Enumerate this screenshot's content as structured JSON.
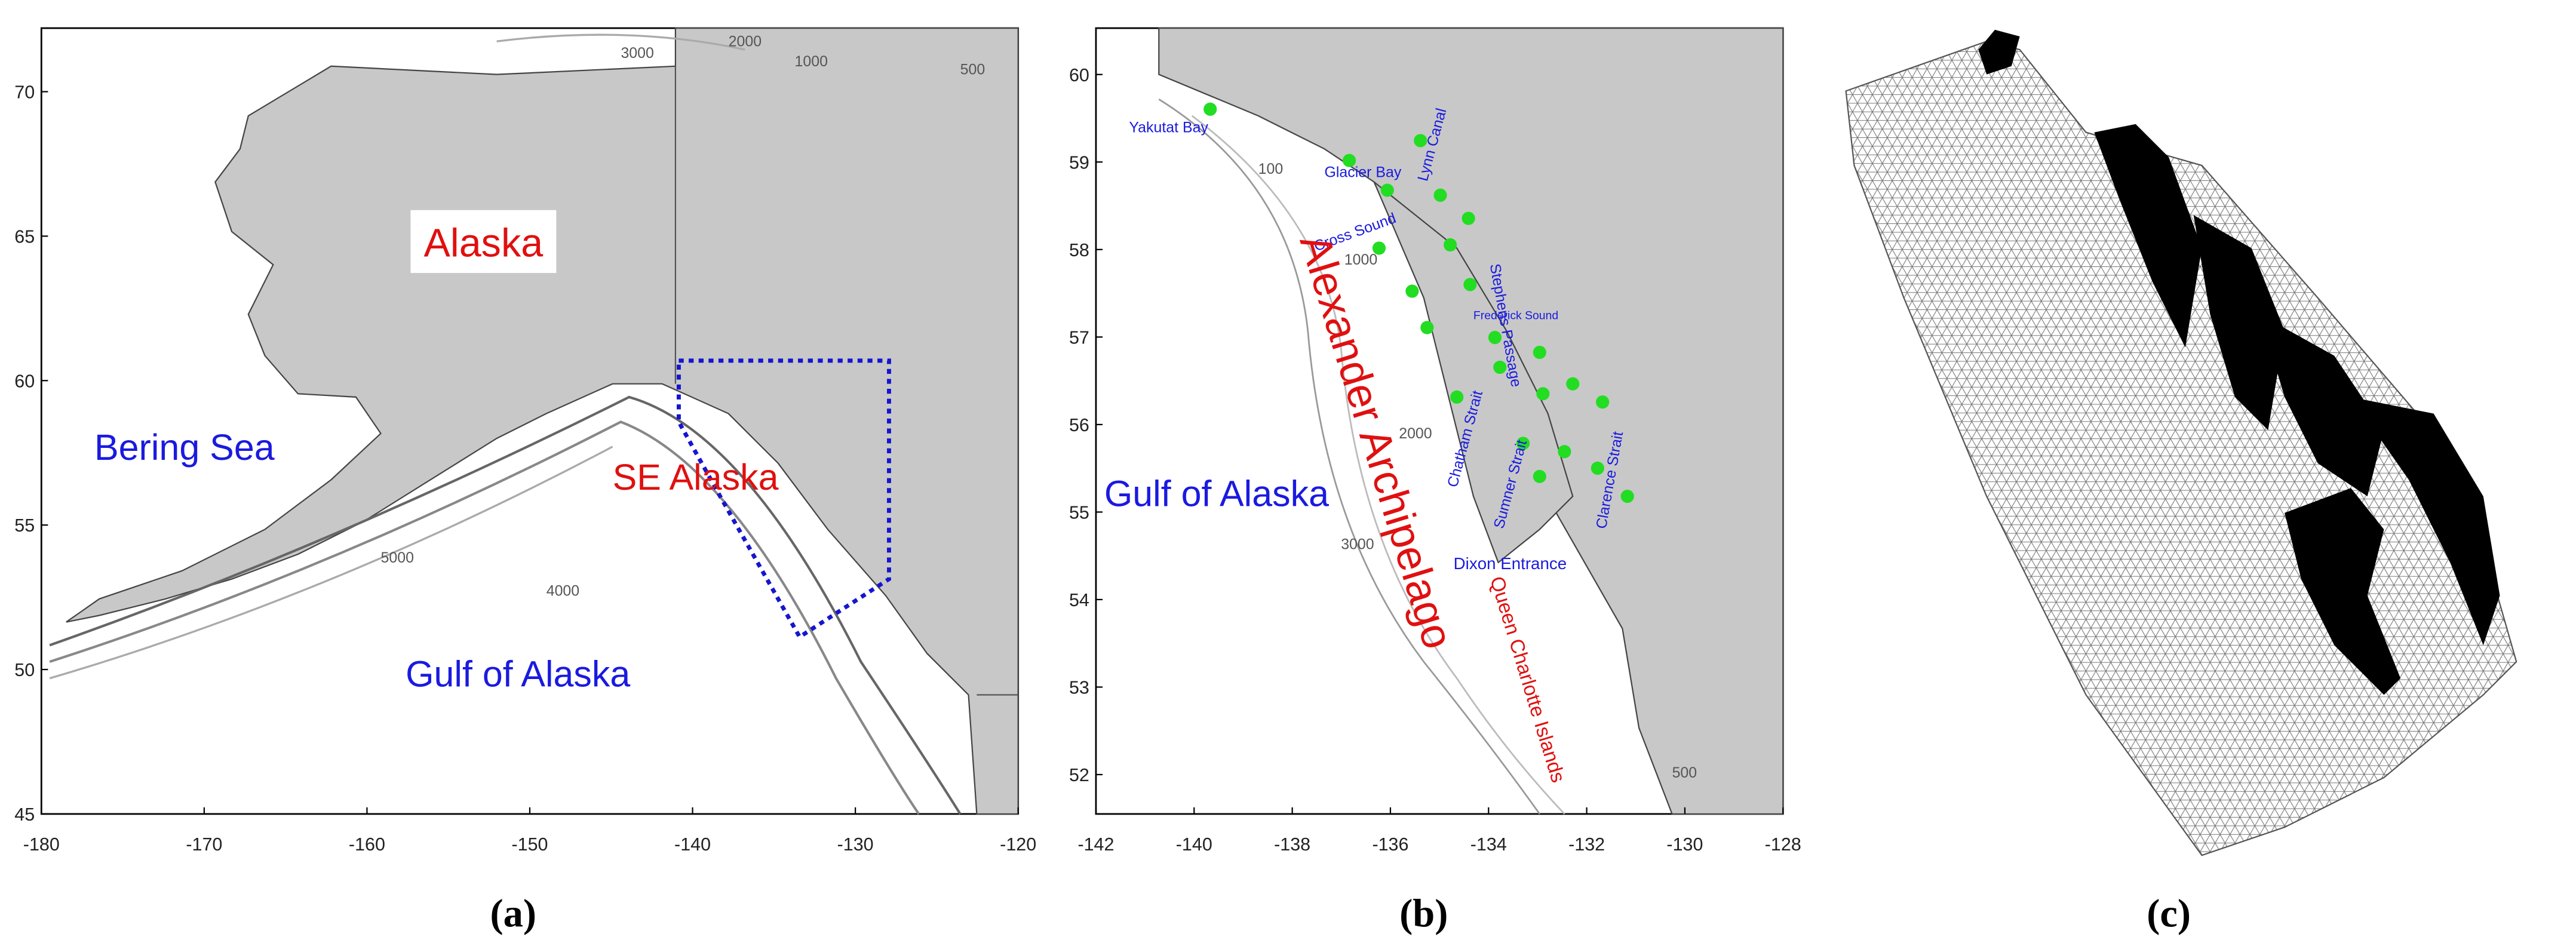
{
  "panels": [
    {
      "label": "(a)",
      "xlim": [
        -180,
        -120
      ],
      "ylim": [
        45,
        72.2
      ],
      "xticks": [
        -180,
        -170,
        -160,
        -150,
        -140,
        -130,
        -120
      ],
      "yticks": [
        45,
        50,
        55,
        60,
        65,
        70
      ],
      "places": [
        "Alaska",
        "Bering Sea",
        "SE Alaska",
        "Gulf of Alaska"
      ],
      "contour_labels": [
        "3000",
        "2000",
        "1000",
        "500",
        "5000",
        "4000"
      ]
    },
    {
      "label": "(b)",
      "xlim": [
        -142,
        -128
      ],
      "ylim": [
        51.55,
        60.53
      ],
      "xticks": [
        -142,
        -140,
        -138,
        -136,
        -134,
        -132,
        -130,
        -128
      ],
      "yticks": [
        52,
        53,
        54,
        55,
        56,
        57,
        58,
        59,
        60
      ],
      "places": [
        "Yakutat Bay",
        "Glacier Bay",
        "Lynn Canal",
        "Stephens Passage",
        "Cross Sound",
        "Frederick Sound",
        "Chatham Strait",
        "Sumner Strait",
        "Clarence Strait",
        "Dixon Entrance",
        "Gulf of Alaska",
        "Alexander Archipelago",
        "Queen Charlotte Islands"
      ],
      "contour_labels": [
        "100",
        "1000",
        "3000",
        "2000",
        "500"
      ]
    },
    {
      "label": "(c)"
    }
  ]
}
